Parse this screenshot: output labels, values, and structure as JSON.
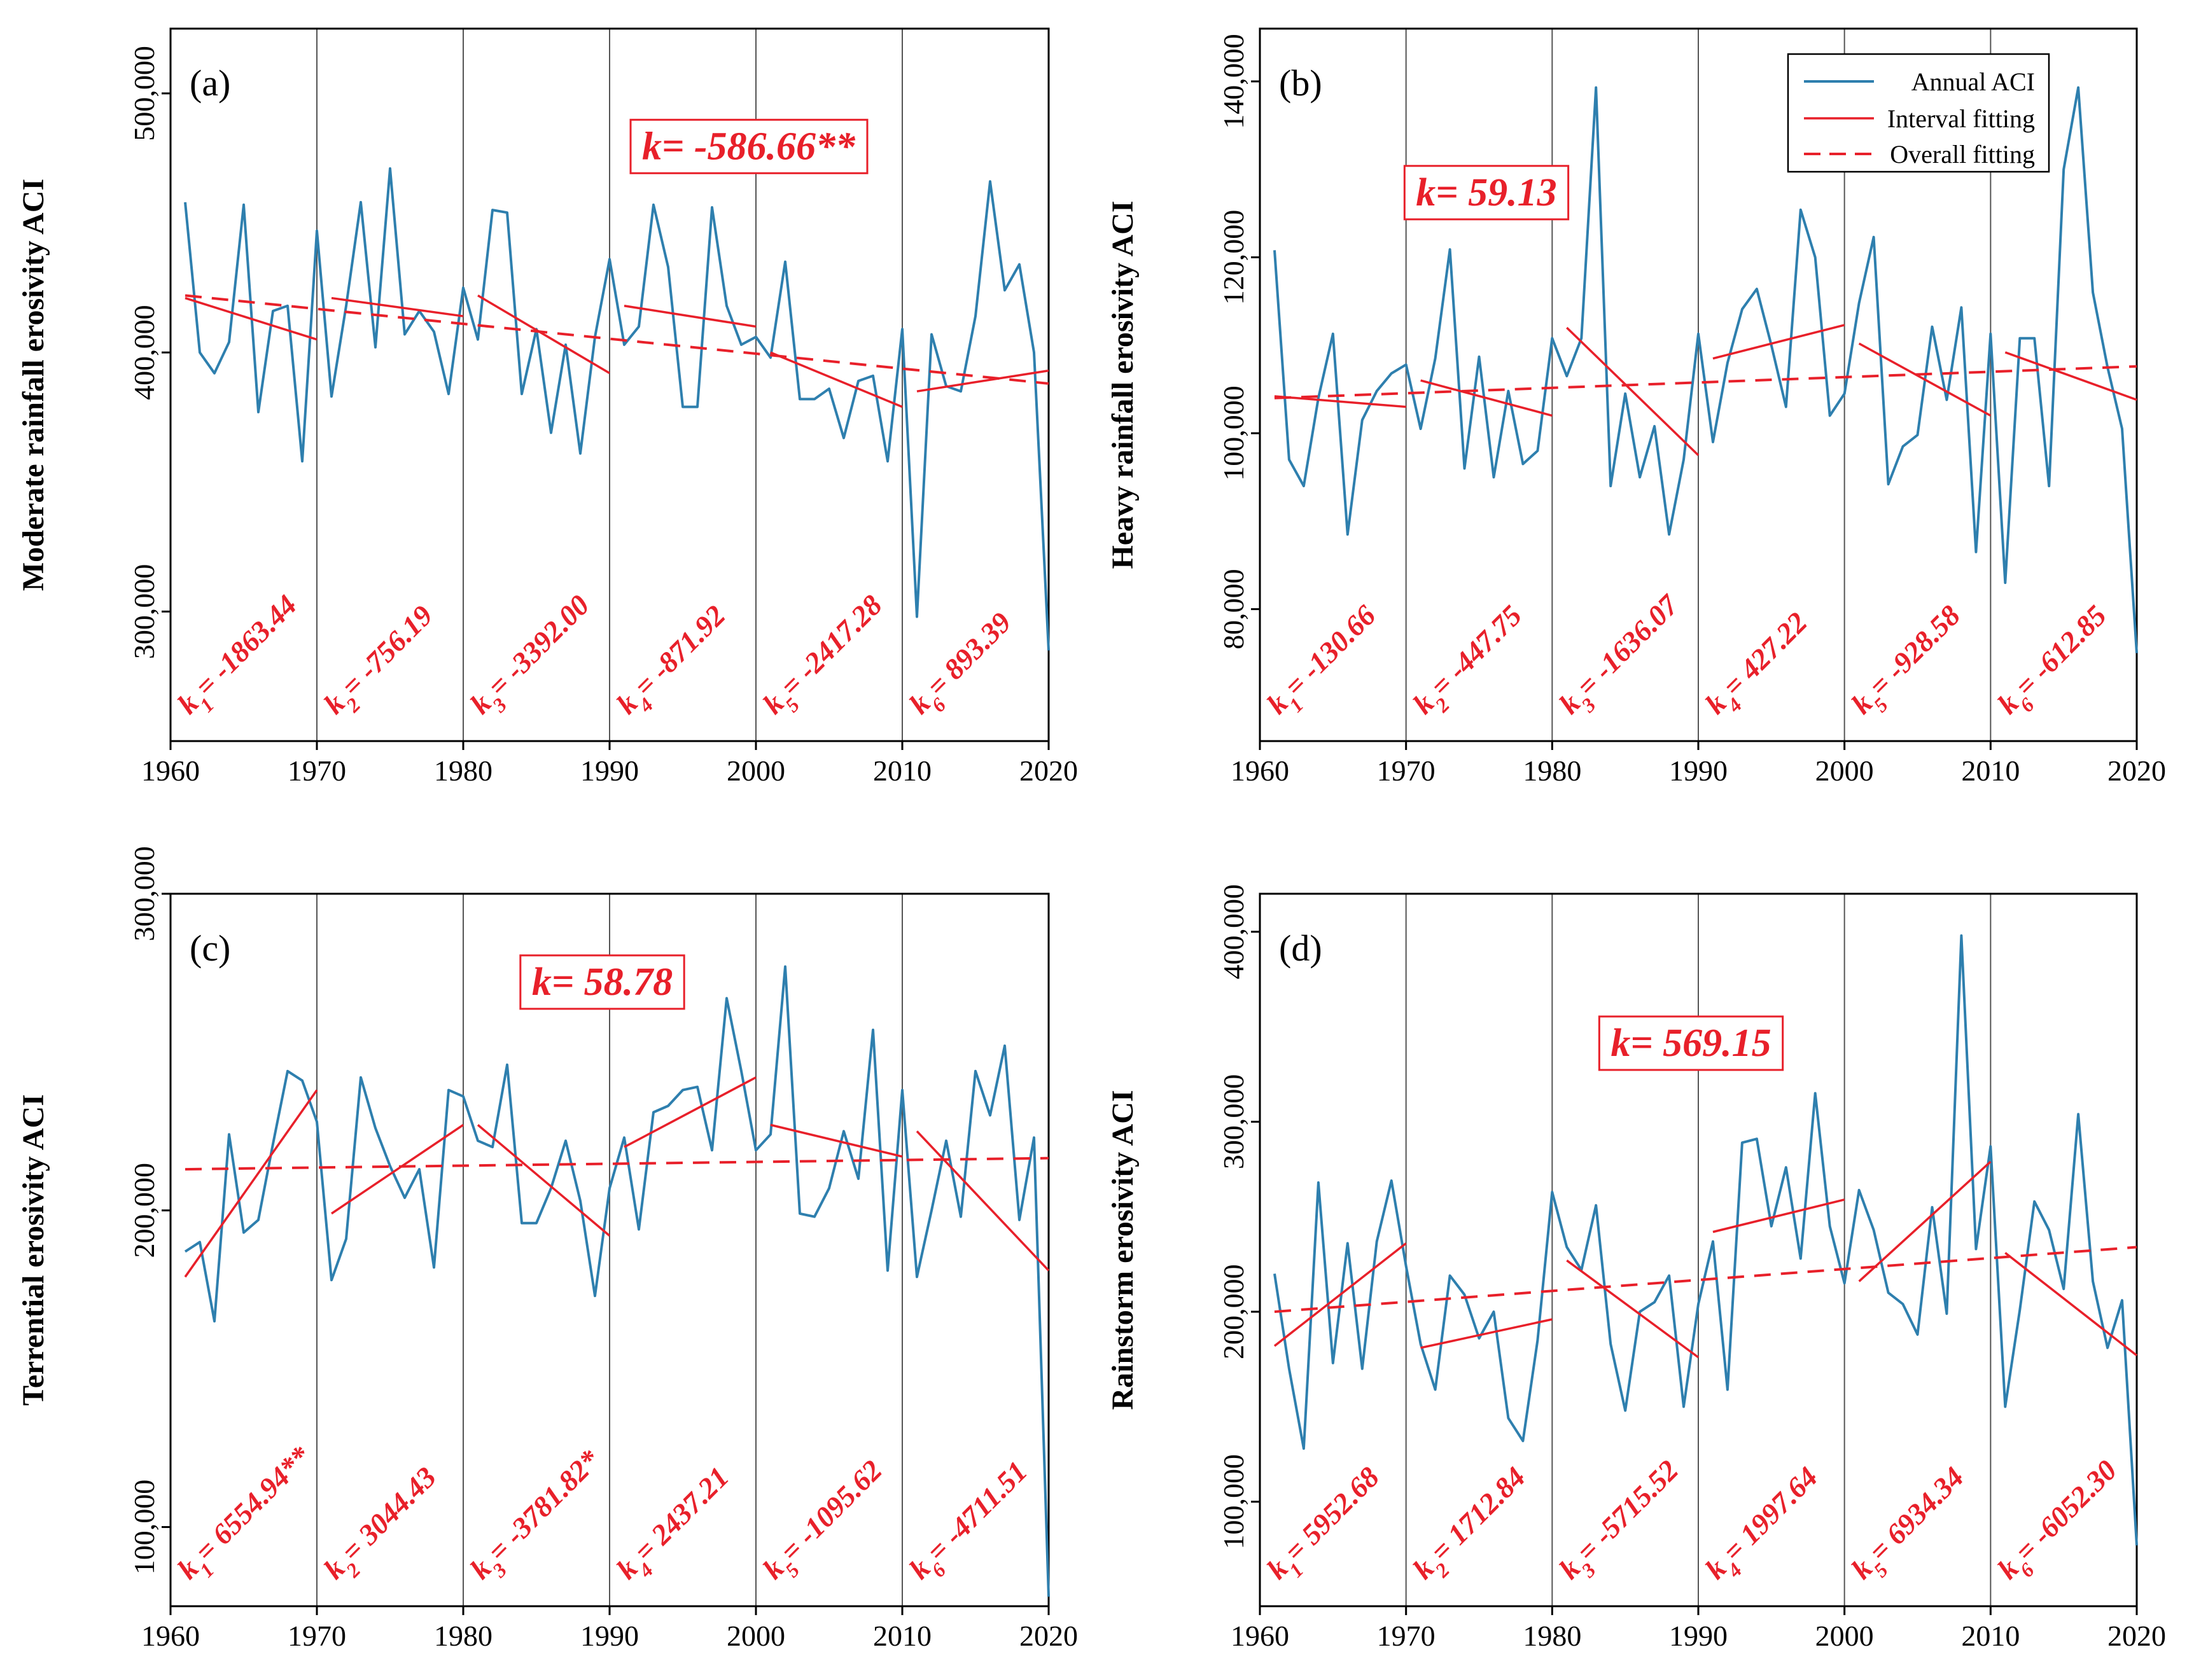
{
  "figure": {
    "legend": {
      "annual": "Annual ACI",
      "interval": "Interval fitting",
      "overall": "Overall fitting"
    }
  },
  "colors": {
    "series": "#2e7fae",
    "fit": "#e8202a",
    "axis": "#000000",
    "divider": "#555555"
  },
  "chart_data": [
    {
      "type": "line",
      "panel": "(a)",
      "ylabel": "Moderate rainfall erosivity ACI",
      "xlim": [
        1960,
        2020
      ],
      "xticks": [
        1960,
        1970,
        1980,
        1990,
        2000,
        2010,
        2020
      ],
      "xtick_labels": [
        "1960",
        "1970",
        "1980",
        "1990",
        "2000",
        "2010",
        "2020"
      ],
      "ylim": [
        250000,
        525000
      ],
      "yticks": [
        300000,
        400000,
        500000
      ],
      "ytick_labels": [
        "300,000",
        "400,000",
        "500,000"
      ],
      "years": [
        1961,
        1962,
        1963,
        1964,
        1965,
        1966,
        1967,
        1968,
        1969,
        1970,
        1971,
        1972,
        1973,
        1974,
        1975,
        1976,
        1977,
        1978,
        1979,
        1980,
        1981,
        1982,
        1983,
        1984,
        1985,
        1986,
        1987,
        1988,
        1989,
        1990,
        1991,
        1992,
        1993,
        1994,
        1995,
        1996,
        1997,
        1998,
        1999,
        2000,
        2001,
        2002,
        2003,
        2004,
        2005,
        2006,
        2007,
        2008,
        2009,
        2010,
        2011,
        2012,
        2013,
        2014,
        2015,
        2016,
        2017,
        2018,
        2019,
        2020
      ],
      "values": [
        458000,
        400000,
        392000,
        404000,
        457000,
        377000,
        416000,
        418000,
        358000,
        447000,
        383000,
        418000,
        458000,
        402000,
        471000,
        407000,
        416000,
        408000,
        384000,
        425000,
        405000,
        455000,
        454000,
        384000,
        409000,
        369000,
        403000,
        361000,
        406000,
        436000,
        403000,
        410000,
        457000,
        433000,
        379000,
        379000,
        456000,
        418000,
        403000,
        406000,
        398000,
        435000,
        382000,
        382000,
        386000,
        367000,
        389000,
        391000,
        358000,
        409000,
        298000,
        407000,
        387000,
        385000,
        414000,
        466000,
        424000,
        434000,
        400000,
        285000
      ],
      "interval_fits": [
        {
          "start": 1961,
          "end": 1970,
          "y_start": 421000,
          "y_end": 405000
        },
        {
          "start": 1971,
          "end": 1980,
          "y_start": 421000,
          "y_end": 414000
        },
        {
          "start": 1981,
          "end": 1990,
          "y_start": 422000,
          "y_end": 392000
        },
        {
          "start": 1991,
          "end": 2000,
          "y_start": 418000,
          "y_end": 410000
        },
        {
          "start": 2001,
          "end": 2010,
          "y_start": 400000,
          "y_end": 379000
        },
        {
          "start": 2011,
          "end": 2020,
          "y_start": 385000,
          "y_end": 393000
        }
      ],
      "overall_fit": {
        "start": 1961,
        "end": 2020,
        "y_start": 422000,
        "y_end": 388000
      },
      "k_intervals": [
        {
          "sub": "1",
          "value": "-1863.44"
        },
        {
          "sub": "2",
          "value": "-756.19"
        },
        {
          "sub": "3",
          "value": "-3392.00"
        },
        {
          "sub": "4",
          "value": "-871.92"
        },
        {
          "sub": "5",
          "value": "-2417.28"
        },
        {
          "sub": "6",
          "value": "893.39"
        }
      ],
      "k_total": "k= -586.66**",
      "k_total_year": 1999.5,
      "k_total_value": 480000
    },
    {
      "type": "line",
      "panel": "(b)",
      "ylabel": "Heavy rainfall erosivity ACI",
      "xlim": [
        1960,
        2020
      ],
      "xticks": [
        1960,
        1970,
        1980,
        1990,
        2000,
        2010,
        2020
      ],
      "xtick_labels": [
        "1960",
        "1970",
        "1980",
        "1990",
        "2000",
        "2010",
        "2020"
      ],
      "ylim": [
        65000,
        146000
      ],
      "yticks": [
        80000,
        100000,
        120000,
        140000
      ],
      "ytick_labels": [
        "80,000",
        "100,000",
        "120,000",
        "140,000"
      ],
      "years": [
        1961,
        1962,
        1963,
        1964,
        1965,
        1966,
        1967,
        1968,
        1969,
        1970,
        1971,
        1972,
        1973,
        1974,
        1975,
        1976,
        1977,
        1978,
        1979,
        1980,
        1981,
        1982,
        1983,
        1984,
        1985,
        1986,
        1987,
        1988,
        1989,
        1990,
        1991,
        1992,
        1993,
        1994,
        1995,
        1996,
        1997,
        1998,
        1999,
        2000,
        2001,
        2002,
        2003,
        2004,
        2005,
        2006,
        2007,
        2008,
        2009,
        2010,
        2011,
        2012,
        2013,
        2014,
        2015,
        2016,
        2017,
        2018,
        2019,
        2020
      ],
      "values": [
        120800,
        97000,
        94000,
        104000,
        111300,
        88500,
        101500,
        104800,
        106800,
        107800,
        100500,
        108500,
        120900,
        96000,
        108700,
        95000,
        104800,
        96500,
        98000,
        110800,
        106500,
        110800,
        139300,
        94000,
        104500,
        95000,
        100800,
        88500,
        97000,
        111300,
        99000,
        108000,
        114100,
        116400,
        110000,
        103000,
        125400,
        120000,
        102000,
        104500,
        114800,
        122300,
        94200,
        98500,
        99800,
        112100,
        103800,
        114300,
        86500,
        111300,
        83000,
        110800,
        110800,
        94000,
        130000,
        139300,
        116000,
        107500,
        100500,
        75000
      ],
      "interval_fits": [
        {
          "start": 1961,
          "end": 1970,
          "y_start": 104200,
          "y_end": 103000
        },
        {
          "start": 1971,
          "end": 1980,
          "y_start": 106000,
          "y_end": 102000
        },
        {
          "start": 1981,
          "end": 1990,
          "y_start": 112000,
          "y_end": 97500
        },
        {
          "start": 1991,
          "end": 2000,
          "y_start": 108500,
          "y_end": 112300
        },
        {
          "start": 2001,
          "end": 2010,
          "y_start": 110200,
          "y_end": 102000
        },
        {
          "start": 2011,
          "end": 2020,
          "y_start": 109200,
          "y_end": 103800
        }
      ],
      "overall_fit": {
        "start": 1961,
        "end": 2020,
        "y_start": 104000,
        "y_end": 107600
      },
      "k_intervals": [
        {
          "sub": "1",
          "value": "-130.66"
        },
        {
          "sub": "2",
          "value": "-447.75"
        },
        {
          "sub": "3",
          "value": "-1636.07"
        },
        {
          "sub": "4",
          "value": "427.22"
        },
        {
          "sub": "5",
          "value": "-928.58"
        },
        {
          "sub": "6",
          "value": "-612.85"
        }
      ],
      "k_total": "k= 59.13",
      "k_total_year": 1975.5,
      "k_total_value": 127500
    },
    {
      "type": "line",
      "panel": "(c)",
      "ylabel": "Terrential erosivity ACI",
      "xlim": [
        1960,
        2020
      ],
      "xticks": [
        1960,
        1970,
        1980,
        1990,
        2000,
        2010,
        2020
      ],
      "xtick_labels": [
        "1960",
        "1970",
        "1980",
        "1990",
        "2000",
        "2010",
        "2020"
      ],
      "ylim": [
        75000,
        300000
      ],
      "yticks": [
        100000,
        200000,
        300000
      ],
      "ytick_labels": [
        "100,000",
        "200,000",
        "300,000"
      ],
      "years": [
        1961,
        1962,
        1963,
        1964,
        1965,
        1966,
        1967,
        1968,
        1969,
        1970,
        1971,
        1972,
        1973,
        1974,
        1975,
        1976,
        1977,
        1978,
        1979,
        1980,
        1981,
        1982,
        1983,
        1984,
        1985,
        1986,
        1987,
        1988,
        1989,
        1990,
        1991,
        1992,
        1993,
        1994,
        1995,
        1996,
        1997,
        1998,
        1999,
        2000,
        2001,
        2002,
        2003,
        2004,
        2005,
        2006,
        2007,
        2008,
        2009,
        2010,
        2011,
        2012,
        2013,
        2014,
        2015,
        2016,
        2017,
        2018,
        2019,
        2020
      ],
      "values": [
        187000,
        190000,
        165000,
        224000,
        193000,
        197000,
        221000,
        244000,
        241000,
        228000,
        178000,
        191000,
        242000,
        226000,
        214000,
        204000,
        213000,
        182000,
        238000,
        236000,
        222000,
        220000,
        246000,
        196000,
        196000,
        207000,
        222000,
        203000,
        173000,
        207000,
        223000,
        194000,
        231000,
        233000,
        238000,
        239000,
        219000,
        267000,
        244000,
        219000,
        224000,
        277000,
        199000,
        198000,
        207000,
        225000,
        210000,
        257000,
        181000,
        238000,
        179000,
        200000,
        222000,
        198000,
        244000,
        230000,
        252000,
        197000,
        223000,
        78000
      ],
      "interval_fits": [
        {
          "start": 1961,
          "end": 1970,
          "y_start": 179000,
          "y_end": 238000
        },
        {
          "start": 1971,
          "end": 1980,
          "y_start": 199000,
          "y_end": 227000
        },
        {
          "start": 1981,
          "end": 1990,
          "y_start": 227000,
          "y_end": 192000
        },
        {
          "start": 1991,
          "end": 2000,
          "y_start": 220000,
          "y_end": 242000
        },
        {
          "start": 2001,
          "end": 2010,
          "y_start": 227000,
          "y_end": 217000
        },
        {
          "start": 2011,
          "end": 2020,
          "y_start": 225000,
          "y_end": 181000
        }
      ],
      "overall_fit": {
        "start": 1961,
        "end": 2020,
        "y_start": 213000,
        "y_end": 216500
      },
      "k_intervals": [
        {
          "sub": "1",
          "value": "6554.94**"
        },
        {
          "sub": "2",
          "value": "3044.43"
        },
        {
          "sub": "3",
          "value": "-3781.82*"
        },
        {
          "sub": "4",
          "value": "2437.21"
        },
        {
          "sub": "5",
          "value": "-1095.62"
        },
        {
          "sub": "6",
          "value": "-4711.51"
        }
      ],
      "k_total": "k= 58.78",
      "k_total_year": 1989.5,
      "k_total_value": 272500
    },
    {
      "type": "line",
      "panel": "(d)",
      "ylabel": "Rainstorm erosivity ACI",
      "xlim": [
        1960,
        2020
      ],
      "xticks": [
        1960,
        1970,
        1980,
        1990,
        2000,
        2010,
        2020
      ],
      "xtick_labels": [
        "1960",
        "1970",
        "1980",
        "1990",
        "2000",
        "2010",
        "2020"
      ],
      "ylim": [
        45000,
        420000
      ],
      "yticks": [
        100000,
        200000,
        300000,
        400000
      ],
      "ytick_labels": [
        "100,000",
        "200,000",
        "300,000",
        "400,000"
      ],
      "years": [
        1961,
        1962,
        1963,
        1964,
        1965,
        1966,
        1967,
        1968,
        1969,
        1970,
        1971,
        1972,
        1973,
        1974,
        1975,
        1976,
        1977,
        1978,
        1979,
        1980,
        1981,
        1982,
        1983,
        1984,
        1985,
        1986,
        1987,
        1988,
        1989,
        1990,
        1991,
        1992,
        1993,
        1994,
        1995,
        1996,
        1997,
        1998,
        1999,
        2000,
        2001,
        2002,
        2003,
        2004,
        2005,
        2006,
        2007,
        2008,
        2009,
        2010,
        2011,
        2012,
        2013,
        2014,
        2015,
        2016,
        2017,
        2018,
        2019,
        2020
      ],
      "values": [
        220000,
        170000,
        128000,
        268000,
        173000,
        236000,
        170000,
        237000,
        269000,
        224000,
        183000,
        159000,
        219000,
        209000,
        186000,
        200000,
        144000,
        132000,
        185000,
        263000,
        234000,
        222000,
        256000,
        183000,
        148000,
        200000,
        205000,
        219000,
        150000,
        204000,
        237000,
        159000,
        289000,
        291000,
        245000,
        276000,
        228000,
        315000,
        245000,
        215000,
        264000,
        243000,
        210000,
        204000,
        188000,
        255000,
        199000,
        398000,
        233000,
        287000,
        150000,
        201000,
        258000,
        243000,
        212000,
        304000,
        216000,
        181000,
        206000,
        77000
      ],
      "interval_fits": [
        {
          "start": 1961,
          "end": 1970,
          "y_start": 182000,
          "y_end": 236000
        },
        {
          "start": 1971,
          "end": 1980,
          "y_start": 181000,
          "y_end": 196000
        },
        {
          "start": 1981,
          "end": 1990,
          "y_start": 227000,
          "y_end": 176000
        },
        {
          "start": 1991,
          "end": 2000,
          "y_start": 242000,
          "y_end": 259000
        },
        {
          "start": 2001,
          "end": 2010,
          "y_start": 216000,
          "y_end": 279000
        },
        {
          "start": 2011,
          "end": 2020,
          "y_start": 231000,
          "y_end": 177000
        }
      ],
      "overall_fit": {
        "start": 1961,
        "end": 2020,
        "y_start": 200000,
        "y_end": 234000
      },
      "k_intervals": [
        {
          "sub": "1",
          "value": "5952.68"
        },
        {
          "sub": "2",
          "value": "1712.84"
        },
        {
          "sub": "3",
          "value": "-5715.52"
        },
        {
          "sub": "4",
          "value": "1997.64"
        },
        {
          "sub": "5",
          "value": "6934.34"
        },
        {
          "sub": "6",
          "value": "-6052.30"
        }
      ],
      "k_total": "k= 569.15",
      "k_total_year": 1989.5,
      "k_total_value": 342000
    }
  ]
}
